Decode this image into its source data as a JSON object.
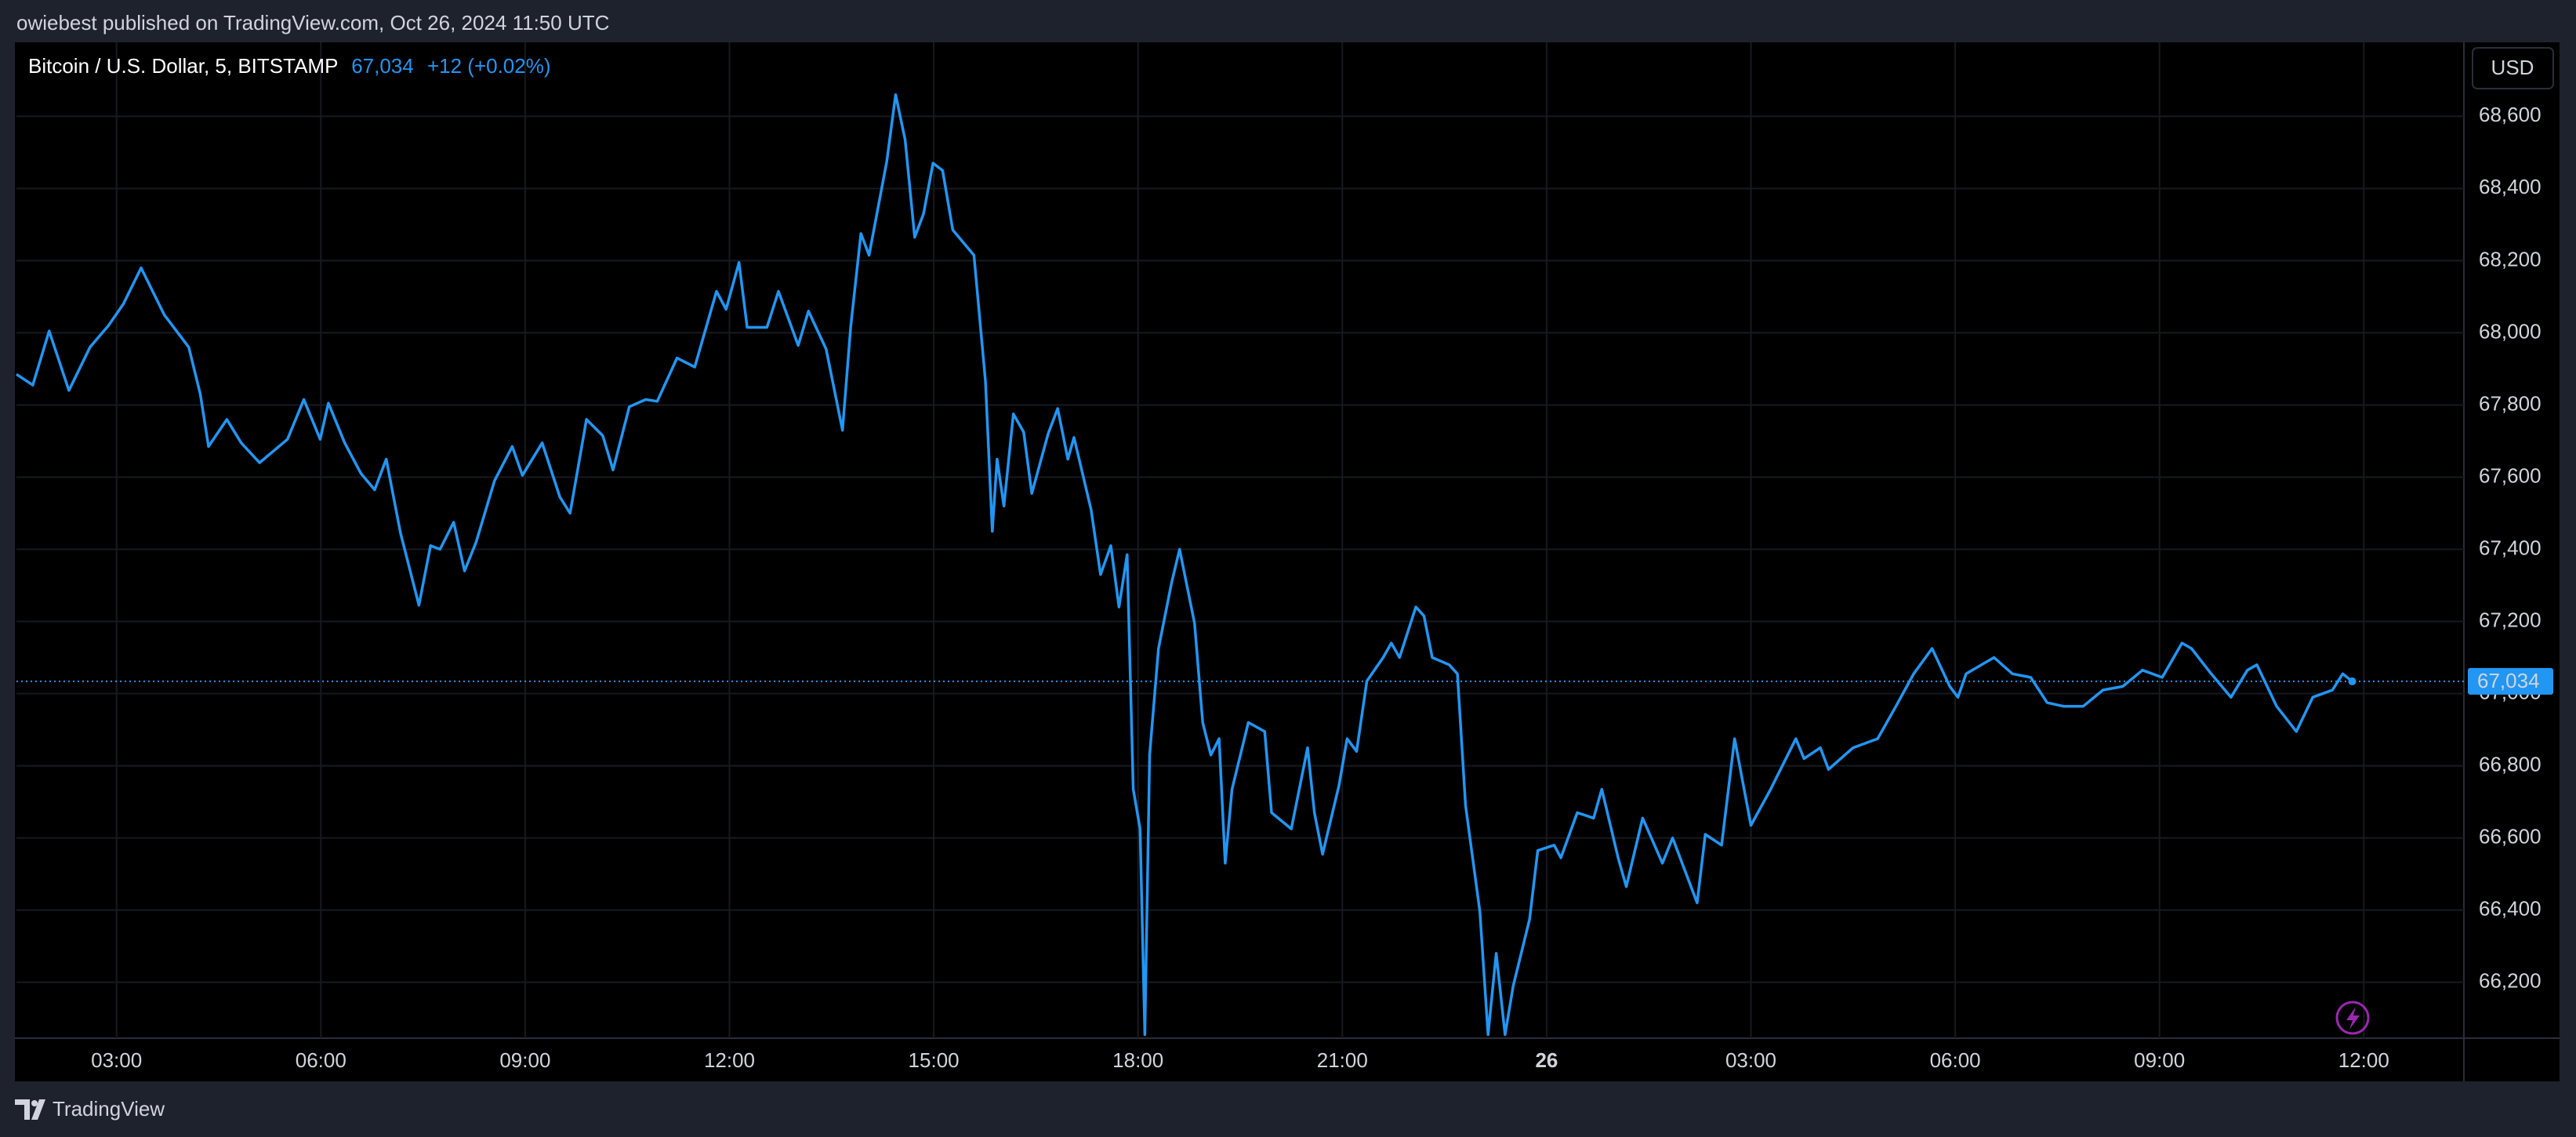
{
  "header": "owiebest published on TradingView.com, Oct 26, 2024 11:50 UTC",
  "symbol": "Bitcoin / U.S. Dollar, 5, BITSTAMP",
  "price_label": "67,034",
  "change_label": "+12 (+0.02%)",
  "currency": "USD",
  "footer": "TradingView",
  "chart_data": {
    "type": "line",
    "color": "#2196f3",
    "x": [
      1.53,
      1.77,
      2.01,
      2.3,
      2.61,
      2.88,
      3.1,
      3.36,
      3.7,
      4.06,
      4.23,
      4.35,
      4.62,
      4.83,
      5.1,
      5.51,
      5.75,
      5.99,
      6.11,
      6.35,
      6.59,
      6.79,
      6.96,
      7.17,
      7.44,
      7.61,
      7.75,
      7.95,
      8.11,
      8.28,
      8.55,
      8.81,
      8.96,
      9.25,
      9.51,
      9.66,
      9.9,
      10.14,
      10.29,
      10.53,
      10.77,
      10.94,
      11.23,
      11.49,
      11.81,
      11.95,
      12.14,
      12.26,
      12.55,
      12.72,
      13.01,
      13.16,
      13.42,
      13.66,
      13.78,
      13.93,
      14.05,
      14.31,
      14.44,
      14.58,
      14.72,
      14.85,
      14.99,
      15.13,
      15.28,
      15.59,
      15.76,
      15.86,
      15.93,
      16.03,
      16.17,
      16.32,
      16.44,
      16.68,
      16.82,
      16.97,
      17.06,
      17.31,
      17.45,
      17.6,
      17.72,
      17.84,
      17.93,
      18.03,
      18.1,
      18.17,
      18.3,
      18.49,
      18.61,
      18.83,
      18.95,
      19.07,
      19.19,
      19.28,
      19.38,
      19.62,
      19.86,
      19.96,
      20.25,
      20.49,
      20.59,
      20.71,
      20.95,
      21.07,
      21.21,
      21.36,
      21.6,
      21.72,
      21.84,
      22.08,
      22.2,
      22.32,
      22.57,
      22.69,
      22.81,
      23.02,
      23.14,
      23.26,
      23.39,
      23.51,
      23.75,
      23.87,
      24.11,
      24.21,
      24.45,
      24.69,
      24.81,
      25.05,
      25.17,
      25.41,
      25.7,
      25.85,
      26.21,
      26.33,
      26.57,
      26.76,
      27.0,
      27.29,
      27.66,
      27.78,
      28.02,
      28.14,
      28.5,
      28.86,
      29.13,
      29.39,
      29.66,
      29.92,
      30.04,
      30.16,
      30.57,
      30.84,
      31.11,
      31.35,
      31.59,
      31.88,
      32.17,
      32.46,
      32.75,
      33.04,
      33.33,
      33.47,
      33.76,
      34.05,
      34.29,
      34.43,
      34.72,
      35.01,
      35.25,
      35.54,
      35.69,
      35.83
    ],
    "values": [
      67885,
      67855,
      68005,
      67840,
      67960,
      68020,
      68080,
      68180,
      68050,
      67960,
      67830,
      67685,
      67760,
      67695,
      67640,
      67705,
      67815,
      67705,
      67805,
      67695,
      67610,
      67565,
      67650,
      67445,
      67245,
      67410,
      67400,
      67475,
      67340,
      67420,
      67590,
      67685,
      67605,
      67695,
      67545,
      67500,
      67760,
      67715,
      67620,
      67795,
      67815,
      67810,
      67930,
      67905,
      68115,
      68065,
      68195,
      68015,
      68015,
      68115,
      67965,
      68060,
      67955,
      67730,
      68015,
      68275,
      68215,
      68475,
      68660,
      68535,
      68265,
      68330,
      68470,
      68450,
      68285,
      68215,
      67865,
      67450,
      67650,
      67520,
      67775,
      67725,
      67555,
      67720,
      67790,
      67650,
      67710,
      67510,
      67330,
      67410,
      67240,
      67385,
      66735,
      66625,
      66055,
      66830,
      67125,
      67305,
      67400,
      67195,
      66920,
      66830,
      66875,
      66530,
      66735,
      66920,
      66895,
      66670,
      66625,
      66850,
      66670,
      66555,
      66745,
      66875,
      66840,
      67035,
      67100,
      67140,
      67100,
      67240,
      67215,
      67100,
      67080,
      67055,
      66690,
      66395,
      66055,
      66280,
      66055,
      66190,
      66375,
      66565,
      66580,
      66545,
      66670,
      66655,
      66735,
      66545,
      66465,
      66655,
      66530,
      66600,
      66420,
      66610,
      66580,
      66875,
      66635,
      66735,
      66875,
      66820,
      66850,
      66790,
      66850,
      66875,
      66965,
      67055,
      67125,
      67020,
      66990,
      67055,
      67100,
      67055,
      67045,
      66975,
      66965,
      66965,
      67010,
      67020,
      67065,
      67045,
      67140,
      67125,
      67055,
      66990,
      67065,
      67080,
      66965,
      66895,
      66990,
      67010,
      67055,
      67034
    ],
    "xlim": [
      1.53,
      37.47
    ],
    "xticks": [
      {
        "value": 3,
        "label": "03:00"
      },
      {
        "value": 6,
        "label": "06:00"
      },
      {
        "value": 9,
        "label": "09:00"
      },
      {
        "value": 12,
        "label": "12:00"
      },
      {
        "value": 15,
        "label": "15:00"
      },
      {
        "value": 18,
        "label": "18:00"
      },
      {
        "value": 21,
        "label": "21:00"
      },
      {
        "value": 24,
        "label": "26"
      },
      {
        "value": 27,
        "label": "03:00"
      },
      {
        "value": 30,
        "label": "06:00"
      },
      {
        "value": 33,
        "label": "09:00"
      },
      {
        "value": 36,
        "label": "12:00"
      }
    ],
    "ylim": [
      66045,
      68805
    ],
    "yticks": [
      {
        "value": 66200,
        "label": "66,200"
      },
      {
        "value": 66400,
        "label": "66,400"
      },
      {
        "value": 66600,
        "label": "66,600"
      },
      {
        "value": 66800,
        "label": "66,800"
      },
      {
        "value": 67000,
        "label": "67,000"
      },
      {
        "value": 67200,
        "label": "67,200"
      },
      {
        "value": 67400,
        "label": "67,400"
      },
      {
        "value": 67600,
        "label": "67,600"
      },
      {
        "value": 67800,
        "label": "67,800"
      },
      {
        "value": 68000,
        "label": "68,000"
      },
      {
        "value": 68200,
        "label": "68,200"
      },
      {
        "value": 68400,
        "label": "68,400"
      },
      {
        "value": 68600,
        "label": "68,600"
      }
    ],
    "grid": true
  }
}
